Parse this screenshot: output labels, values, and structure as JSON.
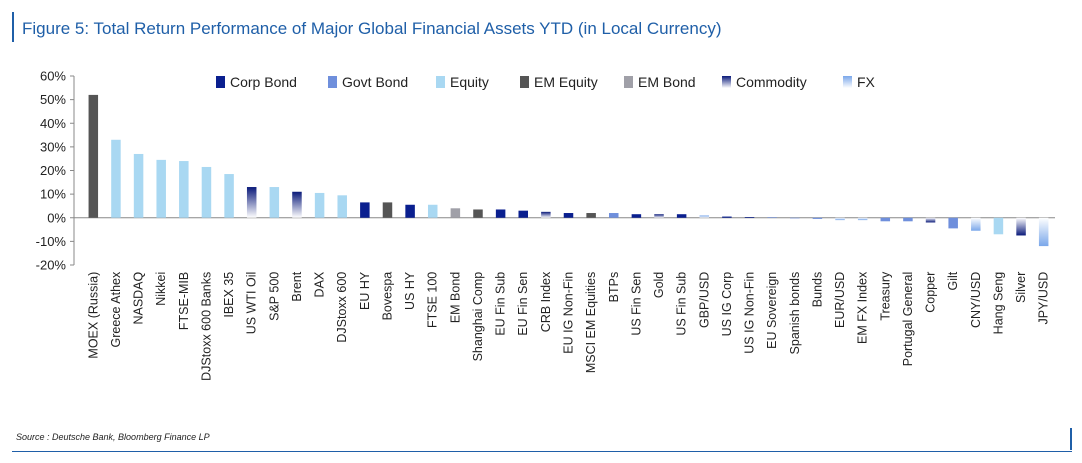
{
  "title": "Figure 5: Total Return Performance of Major Global Financial Assets YTD (in Local Currency)",
  "source": "Source : Deutsche Bank, Bloomberg Finance LP",
  "colors": {
    "Corp Bond": "#0a1f8f",
    "Govt Bond": "#6f8fdc",
    "Equity": "#a9d8f2",
    "EM Equity": "#555555",
    "EM Bond": "#a0a0a8",
    "Commodity": "#0a1a7a",
    "FX": "#7aa7ea"
  },
  "chart_data": {
    "type": "bar",
    "ylim": [
      -20,
      60
    ],
    "yticks": [
      -20,
      -10,
      0,
      10,
      20,
      30,
      40,
      50,
      60
    ],
    "ytick_labels": [
      "-20%",
      "-10%",
      "0%",
      "10%",
      "20%",
      "30%",
      "40%",
      "50%",
      "60%"
    ],
    "legend": [
      "Corp Bond",
      "Govt Bond",
      "Equity",
      "EM Equity",
      "EM Bond",
      "Commodity",
      "FX"
    ],
    "legend_position": "top",
    "categories": [
      "MOEX (Russia)",
      "Greece Athex",
      "NASDAQ",
      "Nikkei",
      "FTSE-MIB",
      "DJStoxx 600 Banks",
      "IBEX 35",
      "US WTI Oil",
      "S&P 500",
      "Brent",
      "DAX",
      "DJStoxx 600",
      "EU HY",
      "Bovespa",
      "US HY",
      "FTSE 100",
      "EM Bond",
      "Shanghai Comp",
      "EU Fin Sub",
      "EU Fin Sen",
      "CRB Index",
      "EU IG Non-Fin",
      "MSCI EM Equities",
      "BTPs",
      "US Fin Sen",
      "Gold",
      "US Fin Sub",
      "GBP/USD",
      "US IG Corp",
      "US IG Non-Fin",
      "EU Sovereign",
      "Spanish bonds",
      "Bunds",
      "EUR/USD",
      "EM FX Index",
      "Treasury",
      "Portugal General",
      "Copper",
      "Gilt",
      "CNY/USD",
      "Hang Seng",
      "Silver",
      "JPY/USD"
    ],
    "values": [
      52,
      33,
      27,
      24.5,
      24,
      21.5,
      18.5,
      13,
      13,
      11,
      10.5,
      9.5,
      6.5,
      6.5,
      5.5,
      5.5,
      4,
      3.5,
      3.5,
      3,
      2.5,
      2,
      2,
      2,
      1.5,
      1.5,
      1.5,
      1,
      0.5,
      0.3,
      0.2,
      -0.2,
      -0.5,
      -1,
      -1,
      -1.5,
      -1.5,
      -2,
      -4.5,
      -5.5,
      -7,
      -7.5,
      -12
    ],
    "groups": [
      "EM Equity",
      "Equity",
      "Equity",
      "Equity",
      "Equity",
      "Equity",
      "Equity",
      "Commodity",
      "Equity",
      "Commodity",
      "Equity",
      "Equity",
      "Corp Bond",
      "EM Equity",
      "Corp Bond",
      "Equity",
      "EM Bond",
      "EM Equity",
      "Corp Bond",
      "Corp Bond",
      "Commodity",
      "Corp Bond",
      "EM Equity",
      "Govt Bond",
      "Corp Bond",
      "Commodity",
      "Corp Bond",
      "FX",
      "Corp Bond",
      "Corp Bond",
      "Govt Bond",
      "Govt Bond",
      "Govt Bond",
      "FX",
      "FX",
      "Govt Bond",
      "Govt Bond",
      "Commodity",
      "Govt Bond",
      "FX",
      "Equity",
      "Commodity",
      "FX"
    ]
  }
}
